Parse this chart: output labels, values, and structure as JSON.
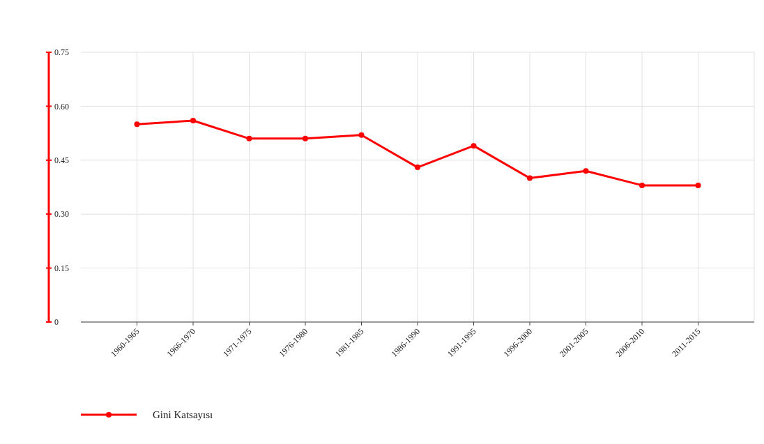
{
  "chart_data": {
    "type": "line",
    "categories": [
      "1960-1965",
      "1966-1970",
      "1971-1975",
      "1976-1980",
      "1981-1985",
      "1986-1990",
      "1991-1995",
      "1996-2000",
      "2001-2005",
      "2006-2010",
      "2011-2015"
    ],
    "series": [
      {
        "name": "Gini Katsayısı",
        "color": "#ff0000",
        "values": [
          0.55,
          0.56,
          0.51,
          0.51,
          0.52,
          0.43,
          0.49,
          0.4,
          0.42,
          0.38,
          0.38
        ]
      }
    ],
    "ylim": [
      0,
      0.75
    ],
    "yticks": [
      {
        "value": 0,
        "label": "0"
      },
      {
        "value": 0.15,
        "label": "0.15"
      },
      {
        "value": 0.3,
        "label": "0.30"
      },
      {
        "value": 0.45,
        "label": "0.45"
      },
      {
        "value": 0.6,
        "label": "0.60"
      },
      {
        "value": 0.75,
        "label": "0.75"
      }
    ],
    "grid": true,
    "legend": "bottom left",
    "marker": "circle",
    "line_style": "solid"
  }
}
